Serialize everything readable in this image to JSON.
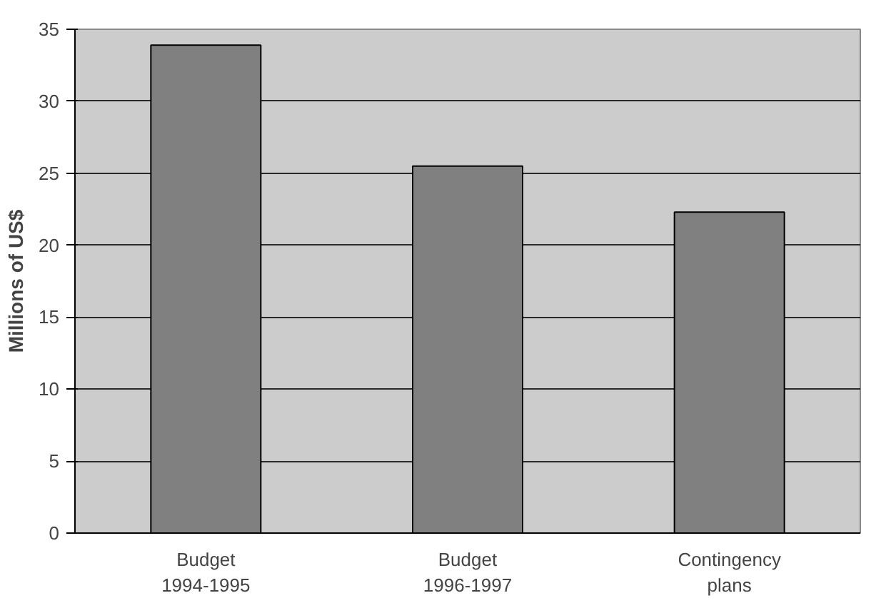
{
  "chart_data": {
    "type": "bar",
    "ylabel": "Millions of US$",
    "categories": [
      "Budget\n1994-1995",
      "Budget\n1996-1997",
      "Contingency\nplans"
    ],
    "values": [
      33.9,
      25.5,
      22.3
    ],
    "color": "#808080",
    "ylim": [
      0,
      35
    ],
    "yticks": [
      0,
      5,
      10,
      15,
      20,
      25,
      30,
      35
    ],
    "grid": "y"
  }
}
